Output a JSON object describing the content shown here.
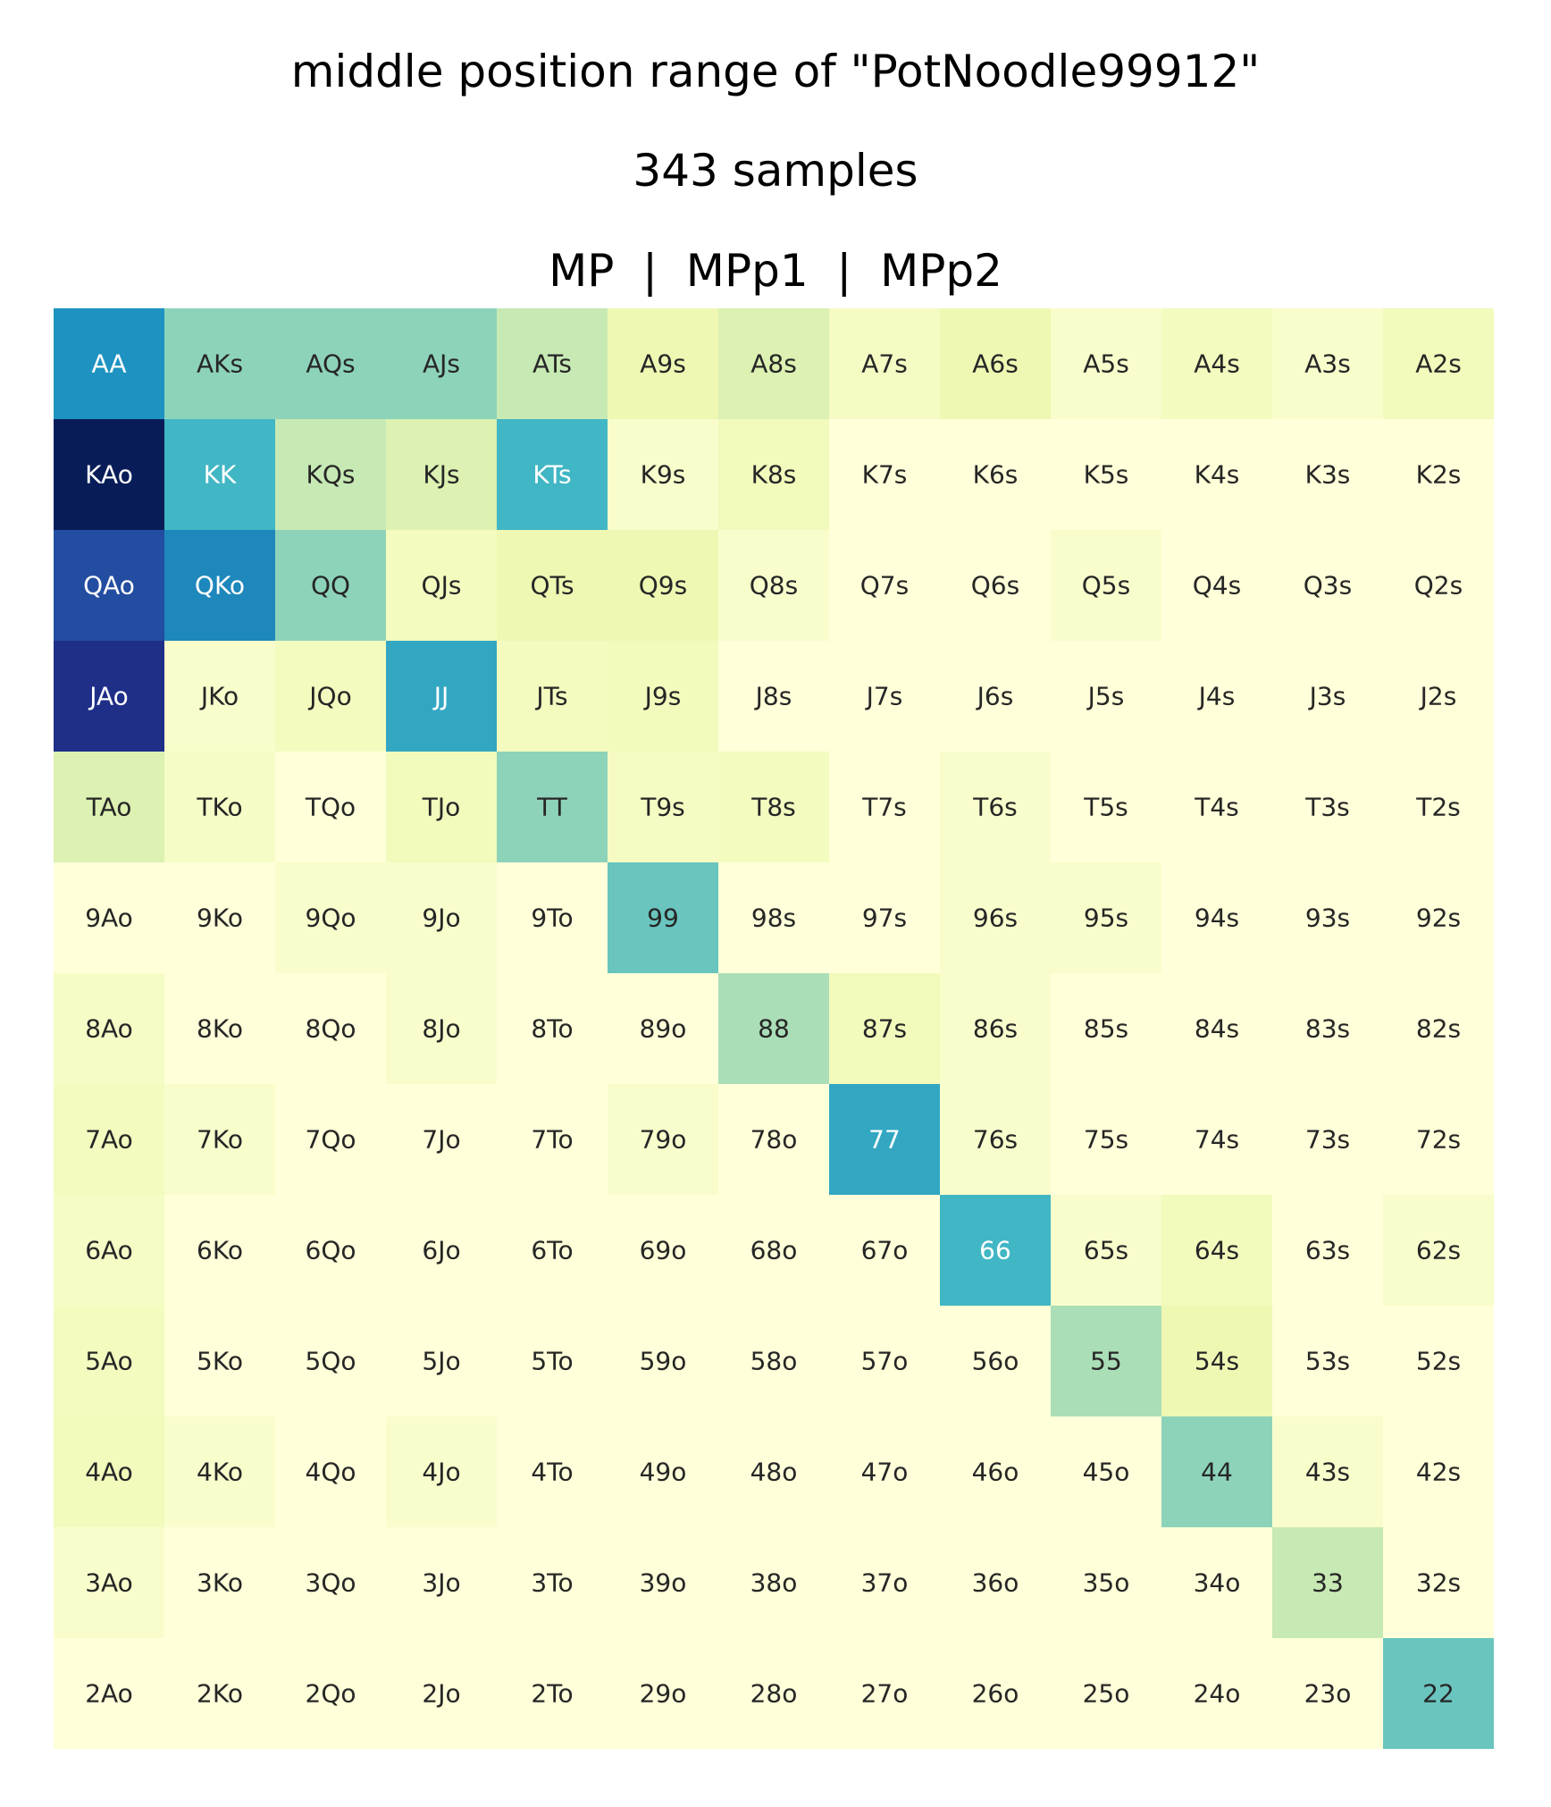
{
  "chart_data": {
    "type": "heatmap",
    "title_lines": [
      "middle position range of \"PotNoodle99912\"",
      "343 samples",
      "MP  |  MPp1  |  MPp2"
    ],
    "colormap": "YlGnBu",
    "rows": [
      [
        "AA",
        "AKs",
        "AQs",
        "AJs",
        "ATs",
        "A9s",
        "A8s",
        "A7s",
        "A6s",
        "A5s",
        "A4s",
        "A3s",
        "A2s"
      ],
      [
        "KAo",
        "KK",
        "KQs",
        "KJs",
        "KTs",
        "K9s",
        "K8s",
        "K7s",
        "K6s",
        "K5s",
        "K4s",
        "K3s",
        "K2s"
      ],
      [
        "QAo",
        "QKo",
        "QQ",
        "QJs",
        "QTs",
        "Q9s",
        "Q8s",
        "Q7s",
        "Q6s",
        "Q5s",
        "Q4s",
        "Q3s",
        "Q2s"
      ],
      [
        "JAo",
        "JKo",
        "JQo",
        "JJ",
        "JTs",
        "J9s",
        "J8s",
        "J7s",
        "J6s",
        "J5s",
        "J4s",
        "J3s",
        "J2s"
      ],
      [
        "TAo",
        "TKo",
        "TQo",
        "TJo",
        "TT",
        "T9s",
        "T8s",
        "T7s",
        "T6s",
        "T5s",
        "T4s",
        "T3s",
        "T2s"
      ],
      [
        "9Ao",
        "9Ko",
        "9Qo",
        "9Jo",
        "9To",
        "99",
        "98s",
        "97s",
        "96s",
        "95s",
        "94s",
        "93s",
        "92s"
      ],
      [
        "8Ao",
        "8Ko",
        "8Qo",
        "8Jo",
        "8To",
        "89o",
        "88",
        "87s",
        "86s",
        "85s",
        "84s",
        "83s",
        "82s"
      ],
      [
        "7Ao",
        "7Ko",
        "7Qo",
        "7Jo",
        "7To",
        "79o",
        "78o",
        "77",
        "76s",
        "75s",
        "74s",
        "73s",
        "72s"
      ],
      [
        "6Ao",
        "6Ko",
        "6Qo",
        "6Jo",
        "6To",
        "69o",
        "68o",
        "67o",
        "66",
        "65s",
        "64s",
        "63s",
        "62s"
      ],
      [
        "5Ao",
        "5Ko",
        "5Qo",
        "5Jo",
        "5To",
        "59o",
        "58o",
        "57o",
        "56o",
        "55",
        "54s",
        "53s",
        "52s"
      ],
      [
        "4Ao",
        "4Ko",
        "4Qo",
        "4Jo",
        "4To",
        "49o",
        "48o",
        "47o",
        "46o",
        "45o",
        "44",
        "43s",
        "42s"
      ],
      [
        "3Ao",
        "3Ko",
        "3Qo",
        "3Jo",
        "3To",
        "39o",
        "38o",
        "37o",
        "36o",
        "35o",
        "34o",
        "33",
        "32s"
      ],
      [
        "2Ao",
        "2Ko",
        "2Qo",
        "2Jo",
        "2To",
        "29o",
        "28o",
        "27o",
        "26o",
        "25o",
        "24o",
        "23o",
        "22"
      ]
    ],
    "values": [
      [
        0.62,
        0.35,
        0.35,
        0.35,
        0.25,
        0.12,
        0.18,
        0.07,
        0.12,
        0.04,
        0.08,
        0.04,
        0.09
      ],
      [
        1.0,
        0.5,
        0.25,
        0.18,
        0.5,
        0.04,
        0.09,
        0.0,
        0.0,
        0.0,
        0.0,
        0.0,
        0.0
      ],
      [
        0.8,
        0.65,
        0.35,
        0.08,
        0.12,
        0.12,
        0.04,
        0.0,
        0.0,
        0.04,
        0.0,
        0.0,
        0.0
      ],
      [
        0.9,
        0.04,
        0.08,
        0.55,
        0.08,
        0.09,
        0.0,
        0.0,
        0.0,
        0.0,
        0.0,
        0.0,
        0.0
      ],
      [
        0.18,
        0.06,
        0.0,
        0.09,
        0.35,
        0.07,
        0.08,
        0.0,
        0.04,
        0.0,
        0.0,
        0.0,
        0.0
      ],
      [
        0.0,
        0.0,
        0.04,
        0.04,
        0.0,
        0.42,
        0.0,
        0.0,
        0.04,
        0.04,
        0.0,
        0.0,
        0.0
      ],
      [
        0.06,
        0.0,
        0.0,
        0.04,
        0.0,
        0.0,
        0.3,
        0.09,
        0.04,
        0.0,
        0.0,
        0.0,
        0.0
      ],
      [
        0.08,
        0.04,
        0.0,
        0.0,
        0.0,
        0.04,
        0.0,
        0.55,
        0.04,
        0.0,
        0.0,
        0.0,
        0.0
      ],
      [
        0.06,
        0.0,
        0.0,
        0.0,
        0.0,
        0.0,
        0.0,
        0.0,
        0.5,
        0.04,
        0.09,
        0.0,
        0.04
      ],
      [
        0.08,
        0.0,
        0.0,
        0.0,
        0.0,
        0.0,
        0.0,
        0.0,
        0.0,
        0.3,
        0.12,
        0.0,
        0.0
      ],
      [
        0.09,
        0.04,
        0.0,
        0.04,
        0.0,
        0.0,
        0.0,
        0.0,
        0.0,
        0.0,
        0.35,
        0.04,
        0.0
      ],
      [
        0.04,
        0.0,
        0.0,
        0.0,
        0.0,
        0.0,
        0.0,
        0.0,
        0.0,
        0.0,
        0.0,
        0.25,
        0.0
      ],
      [
        0.0,
        0.0,
        0.0,
        0.0,
        0.0,
        0.0,
        0.0,
        0.0,
        0.0,
        0.0,
        0.0,
        0.0,
        0.42
      ]
    ],
    "value_range": [
      0,
      1
    ],
    "grid": false,
    "legend": "none"
  }
}
